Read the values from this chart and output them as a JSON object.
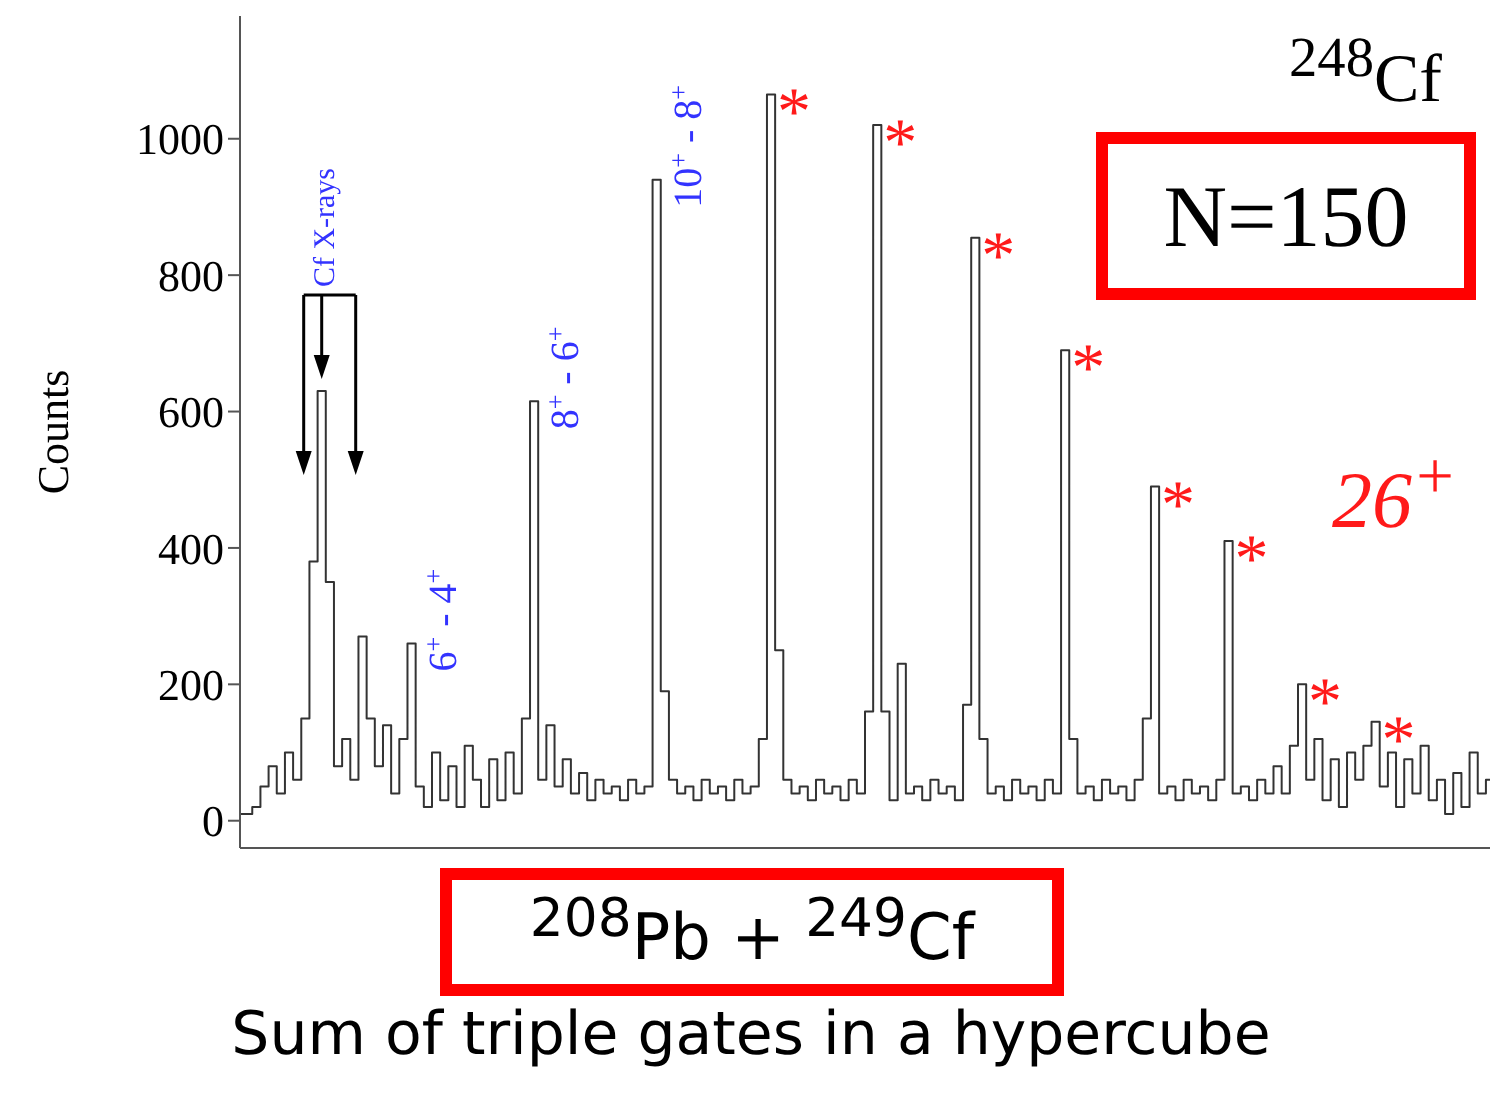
{
  "chart_data": {
    "type": "step",
    "xlabel": "Sum of triple gates in a hypercube",
    "ylabel": "Counts",
    "tick_labels": "y",
    "color": "#333333",
    "categories": [
      null,
      null,
      null,
      null,
      null,
      null,
      null,
      null,
      null,
      null,
      null,
      null,
      null,
      null,
      null,
      null,
      null,
      null,
      null,
      null,
      null,
      null,
      null,
      null,
      null,
      null,
      null,
      null,
      null,
      null,
      null,
      null,
      null,
      null,
      null,
      null,
      null,
      null,
      null,
      null,
      null,
      null,
      null,
      null,
      null,
      null,
      null,
      null,
      null,
      null,
      null,
      null,
      null,
      null,
      null,
      null,
      null,
      null,
      null,
      null,
      null,
      null,
      null,
      null,
      null,
      null,
      null,
      null,
      null,
      null,
      null,
      null,
      null,
      null,
      null,
      null,
      null,
      null,
      null,
      null,
      null,
      null,
      null,
      null,
      null,
      null,
      null,
      null,
      null,
      null,
      null,
      null,
      null,
      null,
      null,
      null,
      null,
      null,
      null,
      null,
      null,
      null,
      null,
      null,
      null,
      null,
      null,
      null,
      null,
      null,
      null,
      null,
      null,
      null,
      null,
      null,
      null,
      null,
      null,
      null,
      null,
      null,
      null,
      null,
      null,
      null,
      null,
      null,
      null,
      null,
      null,
      null,
      null,
      null,
      null,
      null,
      null,
      null,
      null,
      null,
      null,
      null,
      null,
      null,
      null,
      null,
      null,
      null,
      null,
      null,
      null,
      null,
      null,
      null
    ],
    "values": [
      10,
      10,
      20,
      50,
      80,
      40,
      100,
      60,
      150,
      380,
      630,
      350,
      80,
      120,
      60,
      270,
      150,
      80,
      140,
      40,
      120,
      260,
      50,
      20,
      100,
      30,
      80,
      20,
      110,
      60,
      20,
      90,
      30,
      100,
      40,
      150,
      615,
      60,
      140,
      50,
      90,
      40,
      70,
      30,
      60,
      40,
      50,
      30,
      60,
      40,
      50,
      940,
      190,
      60,
      40,
      50,
      30,
      60,
      40,
      50,
      30,
      60,
      40,
      50,
      120,
      1065,
      250,
      60,
      40,
      50,
      30,
      60,
      40,
      50,
      30,
      60,
      40,
      160,
      1020,
      160,
      30,
      230,
      40,
      50,
      30,
      60,
      40,
      50,
      30,
      170,
      855,
      120,
      40,
      50,
      30,
      60,
      40,
      50,
      30,
      60,
      40,
      690,
      120,
      40,
      50,
      30,
      60,
      40,
      50,
      30,
      60,
      150,
      490,
      40,
      50,
      30,
      60,
      40,
      50,
      30,
      60,
      410,
      40,
      50,
      30,
      60,
      40,
      80,
      40,
      110,
      200,
      60,
      120,
      30,
      90,
      20,
      100,
      60,
      110,
      145,
      50,
      100,
      20,
      90,
      40,
      110,
      30,
      60,
      10,
      70,
      20,
      100,
      40,
      60
    ],
    "ylim": [
      -40,
      1180
    ],
    "yticks": [
      0,
      200,
      400,
      600,
      800,
      1000
    ],
    "annotations": [
      "Cf X-rays",
      "6$^{+}$ - 4$^{+}$",
      "8$^{+}$ - 6$^{+}$",
      "10$^{+}$ - 8$^{+}$",
      "*",
      "*",
      "*",
      "*",
      "*",
      "*",
      "*",
      "*",
      "$^{248}$Cf",
      "N=150",
      "26$^{+}$",
      "$^{208}$Pb + $^{249}$Cf"
    ]
  }
}
